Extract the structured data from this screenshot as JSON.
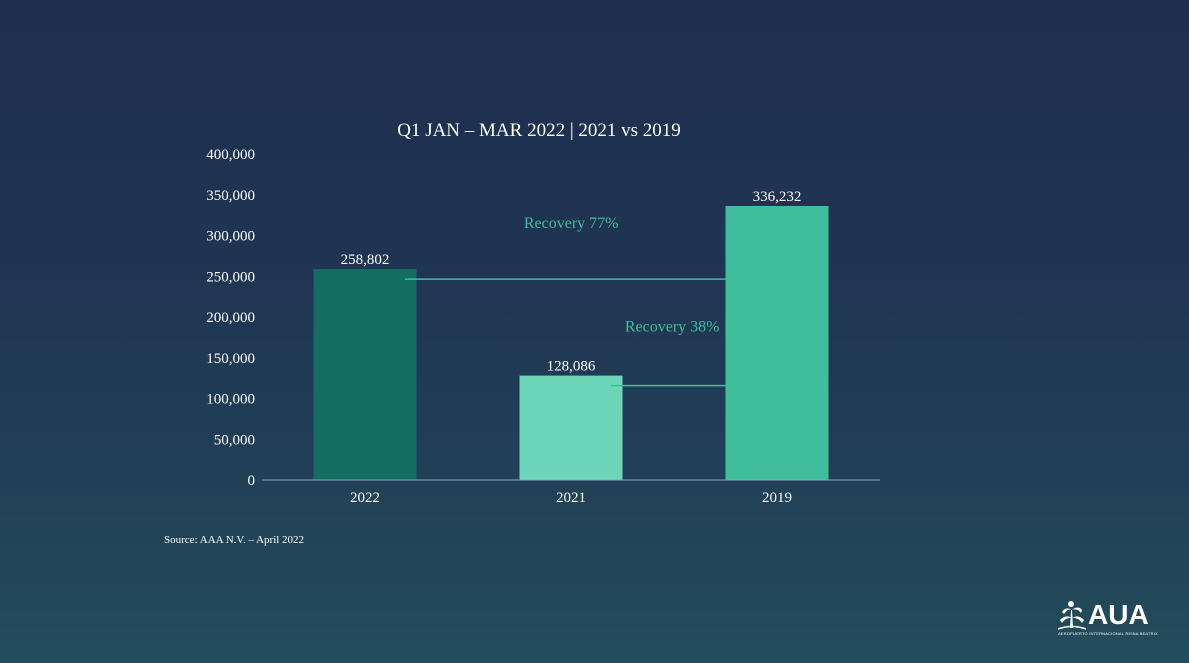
{
  "chart_data": {
    "type": "bar",
    "title": "Q1 JAN – MAR 2022 | 2021 vs 2019",
    "categories": [
      "2022",
      "2021",
      "2019"
    ],
    "values": [
      258802,
      128086,
      336232
    ],
    "value_labels": [
      "258,802",
      "128,086",
      "336,232"
    ],
    "bar_colors": [
      "#136d61",
      "#6dd6b9",
      "#3fbe9b"
    ],
    "ylim": [
      0,
      400000
    ],
    "yticks": [
      0,
      50000,
      100000,
      150000,
      200000,
      250000,
      300000,
      350000,
      400000
    ],
    "ytick_labels": [
      "0",
      "50,000",
      "100,000",
      "150,000",
      "200,000",
      "250,000",
      "300,000",
      "350,000",
      "400,000"
    ],
    "xlabel": "",
    "ylabel": "",
    "grid": false,
    "legend": "none",
    "annotations": [
      {
        "text": "Recovery 77%",
        "from": "2022",
        "to": "2019",
        "color": "#3fbe9b"
      },
      {
        "text": "Recovery 38%",
        "from": "2021",
        "to": "2019",
        "color": "#3fbe9b"
      }
    ]
  },
  "footer": {
    "source": "Source: AAA N.V. – April 2022"
  },
  "logo": {
    "name": "AUA",
    "tagline": "AEROPUERTO INTERNACIONAL REINA BEATRIX",
    "icon": "palm-tree-icon"
  },
  "colors": {
    "background_top": "#1f2e4f",
    "background_bottom": "#234d5c",
    "axis": "#8fa3b5",
    "text": "#ffffff"
  }
}
